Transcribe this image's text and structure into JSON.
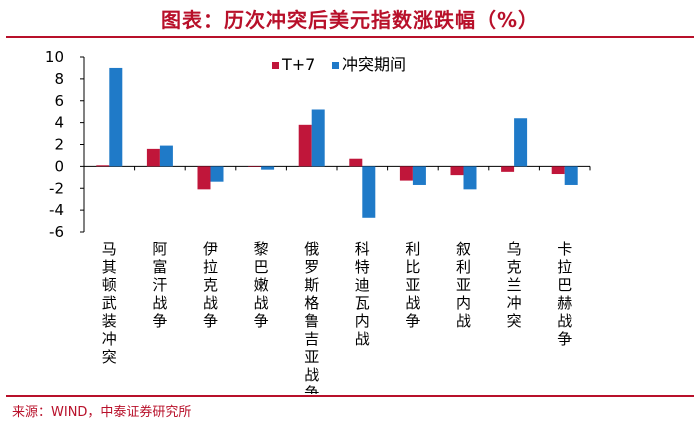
{
  "title": "图表：历次冲突后美元指数涨跌幅（%）",
  "source": "来源：WIND，中泰证券研究所",
  "colors": {
    "accent": "#b8102a",
    "series1": "#c0163a",
    "series2": "#1f7ac8"
  },
  "chart_data": {
    "type": "bar",
    "title": "图表：历次冲突后美元指数涨跌幅（%）",
    "xlabel": "",
    "ylabel": "",
    "ylim": [
      -6,
      10
    ],
    "yticks": [
      "10",
      "8",
      "6",
      "4",
      "2",
      "0",
      "-2",
      "-4",
      "-6"
    ],
    "categories": [
      "马其顿武装冲突",
      "阿富汗战争",
      "伊拉克战争",
      "黎巴嫩战争",
      "俄罗斯格鲁吉亚战争",
      "科特迪瓦内战",
      "利比亚战争",
      "叙利亚内战",
      "乌克兰冲突",
      "卡拉巴赫战争"
    ],
    "series": [
      {
        "name": "T+7",
        "color": "#c0163a",
        "values": [
          0.1,
          1.6,
          -2.1,
          0.0,
          3.8,
          0.7,
          -1.3,
          -0.8,
          -0.5,
          -0.7
        ]
      },
      {
        "name": "冲突期间",
        "color": "#1f7ac8",
        "values": [
          9.0,
          1.9,
          -1.4,
          -0.3,
          5.2,
          -4.7,
          -1.7,
          -2.1,
          4.4,
          -1.7
        ]
      }
    ],
    "legend": "top-center"
  }
}
